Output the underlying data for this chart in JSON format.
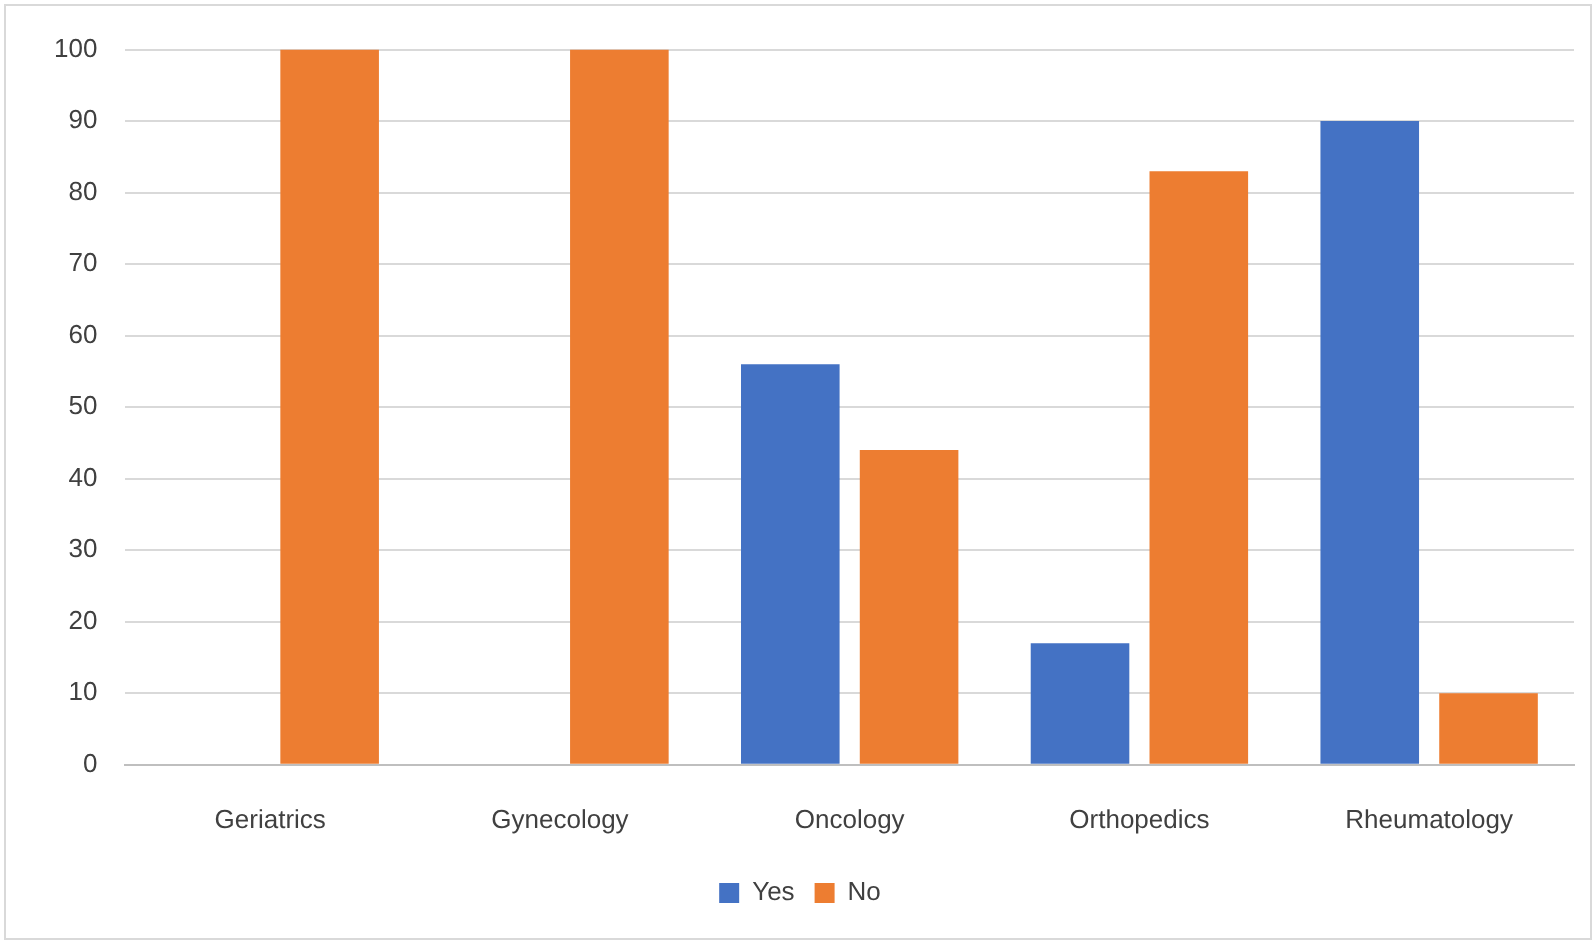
{
  "chart_data": {
    "type": "bar",
    "categories": [
      "Geriatrics",
      "Gynecology",
      "Oncology",
      "Orthopedics",
      "Rheumatology"
    ],
    "series": [
      {
        "name": "Yes",
        "color": "#4472c4",
        "values": [
          0,
          0,
          56,
          17,
          90
        ]
      },
      {
        "name": "No",
        "color": "#ed7d31",
        "values": [
          100,
          100,
          44,
          83,
          10
        ]
      }
    ],
    "ylim": [
      0,
      100
    ],
    "yticks": [
      0,
      10,
      20,
      30,
      40,
      50,
      60,
      70,
      80,
      90,
      100
    ],
    "grid": "y",
    "legend": "bottom"
  }
}
